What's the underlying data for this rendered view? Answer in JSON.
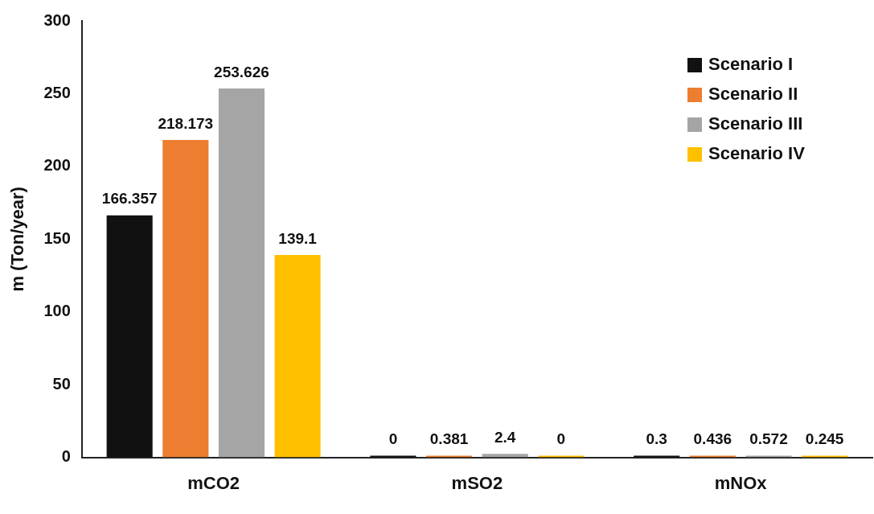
{
  "chart_data": {
    "type": "bar",
    "ylabel": "m (Ton/year)",
    "categories": [
      "mCO2",
      "mSO2",
      "mNOx"
    ],
    "series": [
      {
        "name": "Scenario I",
        "color": "#111111",
        "values": [
          166.357,
          0,
          0.3
        ]
      },
      {
        "name": "Scenario II",
        "color": "#ed7d31",
        "values": [
          218.173,
          0.381,
          0.436
        ]
      },
      {
        "name": "Scenario III",
        "color": "#a5a5a5",
        "values": [
          253.626,
          2.4,
          0.572
        ]
      },
      {
        "name": "Scenario IV",
        "color": "#ffc000",
        "values": [
          139.1,
          0,
          0.245
        ]
      }
    ],
    "ylim": [
      0,
      300
    ],
    "yticks": [
      0,
      50,
      100,
      150,
      200,
      250,
      300
    ],
    "grid": false,
    "legend": "top right",
    "data_labels": true
  }
}
